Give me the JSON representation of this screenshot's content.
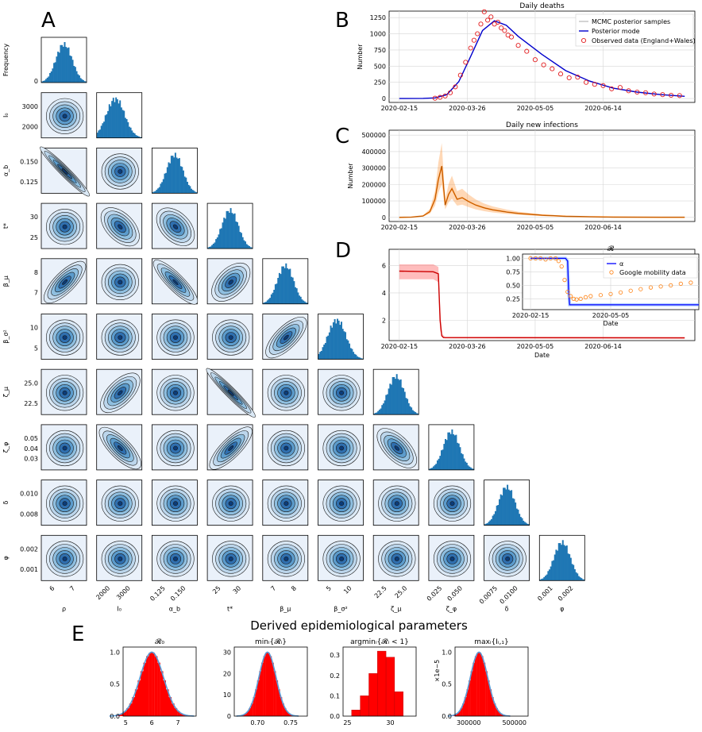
{
  "panels": {
    "A": "A",
    "B": "B",
    "C": "C",
    "D": "D",
    "E": "E"
  },
  "corner": {
    "params": [
      "ρ",
      "I₀",
      "α_b",
      "t*",
      "β_μ",
      "β_σ²",
      "ζ_μ",
      "ζ_φ",
      "δ",
      "φ"
    ],
    "xlabels": [
      "ρ",
      "I₀",
      "α_b",
      "t*",
      "β_μ",
      "β_σ²",
      "ζ_μ",
      "ζ_φ",
      "δ",
      "φ"
    ],
    "ylabels": [
      "Frequency",
      "I₀",
      "α_b",
      "t*",
      "β_μ",
      "β_σ²",
      "ζ_μ",
      "ζ_φ",
      "δ",
      "φ"
    ],
    "xticks": [
      [
        "6",
        "7"
      ],
      [
        "2000",
        "3000"
      ],
      [
        "0.125",
        "0.150"
      ],
      [
        "25",
        "30"
      ],
      [
        "7",
        "8"
      ],
      [
        "5",
        "10"
      ],
      [
        "22.5",
        "25.0"
      ],
      [
        "0.025",
        "0.050"
      ],
      [
        "0.0075",
        "0.0100"
      ],
      [
        "0.001",
        "0.002"
      ]
    ],
    "yticks": [
      [
        "0"
      ],
      [
        "2000",
        "3000"
      ],
      [
        "0.125",
        "0.150"
      ],
      [
        "25",
        "30"
      ],
      [
        "7",
        "8"
      ],
      [
        "5",
        "10"
      ],
      [
        "22.5",
        "25.0"
      ],
      [
        "0.03",
        "0.04",
        "0.05"
      ],
      [
        "0.008",
        "0.010"
      ],
      [
        "0.001",
        "0.002"
      ]
    ],
    "colors": {
      "hist": "#1f77b4",
      "hist_outline": "#ff7f0e",
      "kde_bg": "#eaf1fa",
      "kde_dark": "#08306b"
    }
  },
  "chart_data": [
    {
      "id": "B",
      "type": "line",
      "title": "Daily deaths",
      "ylabel": "Number",
      "xticks": [
        "2020-02-15",
        "2020-03-26",
        "2020-05-05",
        "2020-06-14"
      ],
      "yticks": [
        "0",
        "250",
        "500",
        "750",
        "1000",
        "1250"
      ],
      "ylim": [
        0,
        1350
      ],
      "legend": [
        "MCMC posterior samples",
        "Posterior mode",
        "Observed data (England+Wales)"
      ],
      "legend_placement": "top-right",
      "x_days": [
        0,
        14,
        21,
        28,
        35,
        42,
        49,
        56,
        63,
        70,
        84,
        98,
        112,
        126,
        140,
        154,
        168
      ],
      "mode": [
        0,
        2,
        10,
        60,
        260,
        650,
        1050,
        1200,
        1130,
        960,
        680,
        430,
        270,
        160,
        100,
        60,
        35
      ],
      "observed_days": [
        21,
        24,
        27,
        30,
        33,
        36,
        39,
        42,
        44,
        46,
        48,
        50,
        52,
        54,
        56,
        58,
        60,
        62,
        64,
        66,
        70,
        75,
        80,
        85,
        90,
        95,
        100,
        105,
        110,
        115,
        120,
        125,
        130,
        135,
        140,
        145,
        150,
        155,
        160,
        165
      ],
      "observed": [
        5,
        18,
        40,
        90,
        180,
        360,
        560,
        780,
        900,
        1000,
        1150,
        1340,
        1210,
        1260,
        1150,
        1180,
        1090,
        1050,
        980,
        950,
        820,
        730,
        600,
        520,
        460,
        380,
        320,
        330,
        250,
        220,
        200,
        150,
        170,
        120,
        100,
        90,
        70,
        60,
        50,
        45
      ],
      "colors": {
        "mode": "#0000cc",
        "observed": "#e31a1c",
        "samples": "#aaaaaa"
      }
    },
    {
      "id": "C",
      "type": "line",
      "title": "Daily new infections",
      "ylabel": "Number",
      "xticks": [
        "2020-02-15",
        "2020-03-26",
        "2020-05-05",
        "2020-06-14"
      ],
      "yticks": [
        "0",
        "100000",
        "200000",
        "300000",
        "400000",
        "500000"
      ],
      "ylim": [
        0,
        530000
      ],
      "x_days": [
        0,
        7,
        14,
        18,
        21,
        23,
        25,
        27,
        29,
        31,
        34,
        37,
        41,
        45,
        50,
        55,
        63,
        70,
        84,
        98,
        112,
        126,
        140,
        154,
        168
      ],
      "values": [
        0,
        1500,
        9000,
        35000,
        110000,
        230000,
        312000,
        75000,
        140000,
        175000,
        110000,
        120000,
        95000,
        75000,
        58000,
        46000,
        33000,
        24000,
        13000,
        7000,
        4000,
        2200,
        1300,
        800,
        500
      ],
      "color": "#ff7f0e"
    },
    {
      "id": "D",
      "type": "line",
      "title": "𝓡",
      "xlabel": "Date",
      "xticks": [
        "2020-02-15",
        "2020-03-26",
        "2020-05-05",
        "2020-06-14"
      ],
      "yticks": [
        "2",
        "4",
        "6"
      ],
      "ylim": [
        0.5,
        7.2
      ],
      "x_days": [
        0,
        20,
        23,
        24,
        25,
        26,
        168
      ],
      "values": [
        5.6,
        5.55,
        5.4,
        2.0,
        0.85,
        0.72,
        0.7
      ],
      "color": "#cc0000",
      "inset": {
        "xticks": [
          "2020-02-15",
          "2020-05-05"
        ],
        "yticks": [
          "0.25",
          "0.50",
          "0.75",
          "1.00"
        ],
        "xlabel": "Date",
        "legend": [
          "α",
          "Google mobility data"
        ],
        "alpha_days": [
          0,
          35,
          37,
          38,
          39,
          168
        ],
        "alpha": [
          1.0,
          1.0,
          0.95,
          0.4,
          0.14,
          0.14
        ],
        "mobility_days": [
          0,
          5,
          10,
          15,
          20,
          25,
          28,
          31,
          34,
          37,
          40,
          43,
          46,
          50,
          55,
          60,
          70,
          80,
          90,
          100,
          110,
          120,
          130,
          140,
          150,
          160
        ],
        "mobility": [
          1.0,
          1.0,
          1.0,
          0.98,
          1.0,
          1.0,
          0.95,
          0.85,
          0.6,
          0.38,
          0.3,
          0.25,
          0.24,
          0.25,
          0.28,
          0.3,
          0.32,
          0.34,
          0.37,
          0.4,
          0.43,
          0.46,
          0.48,
          0.5,
          0.53,
          0.55
        ],
        "colors": {
          "alpha": "#0000ff",
          "mobility": "#ff7f0e"
        }
      }
    },
    {
      "id": "E",
      "type": "bar",
      "suptitle": "Derived epidemiological parameters",
      "subplots": [
        {
          "title": "𝓡₀",
          "xticks": [
            "5",
            "6",
            "7"
          ],
          "yticks": [
            "0.0",
            "0.5",
            "1.0"
          ],
          "mean": 6.0,
          "sd": 0.45,
          "xlim": [
            4.9,
            7.7
          ]
        },
        {
          "title": "minᵢ{𝓡ᵢ}",
          "xticks": [
            "0.70",
            "0.75"
          ],
          "yticks": [
            "0",
            "10",
            "20",
            "30"
          ],
          "mean": 0.715,
          "sd": 0.013,
          "xlim": [
            0.665,
            0.775
          ]
        },
        {
          "title": "argminᵢ{𝓡ᵢ < 1}",
          "xticks": [
            "25",
            "30"
          ],
          "yticks": [
            "0.0",
            "0.1",
            "0.2",
            "0.3"
          ],
          "categories": [
            26,
            27,
            28,
            29,
            30,
            31
          ],
          "values": [
            0.03,
            0.1,
            0.21,
            0.32,
            0.29,
            0.12
          ],
          "xlim": [
            24.5,
            33
          ]
        },
        {
          "title": "maxᵢ{Iᵢ,₁}",
          "xticks": [
            "300000",
            "500000"
          ],
          "yticks": [
            "0.0",
            "0.5",
            "1.0"
          ],
          "yunit": "×1e−5",
          "mean": 345000,
          "sd": 38000,
          "xlim": [
            240000,
            560000
          ]
        }
      ],
      "colors": {
        "bar": "#ff0000",
        "kde": "#5b9bd5"
      }
    }
  ]
}
